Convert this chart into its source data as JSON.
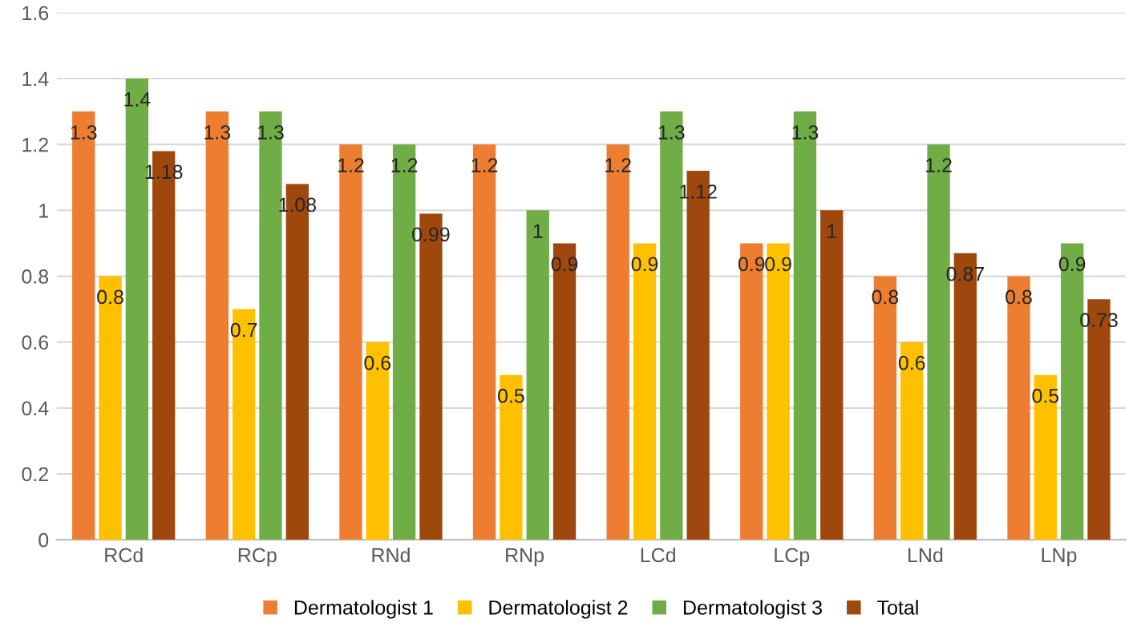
{
  "chart_data": {
    "type": "bar",
    "categories": [
      "RCd",
      "RCp",
      "RNd",
      "RNp",
      "LCd",
      "LCp",
      "LNd",
      "LNp"
    ],
    "series": [
      {
        "name": "Dermatologist 1",
        "color": "#ed7d31",
        "values": [
          1.3,
          1.3,
          1.2,
          1.2,
          1.2,
          0.9,
          0.8,
          0.8
        ]
      },
      {
        "name": "Dermatologist 2",
        "color": "#ffc000",
        "values": [
          0.8,
          0.7,
          0.6,
          0.5,
          0.9,
          0.9,
          0.6,
          0.5
        ]
      },
      {
        "name": "Dermatologist 3",
        "color": "#70ad47",
        "values": [
          1.4,
          1.3,
          1.2,
          1,
          1.3,
          1.3,
          1.2,
          0.9
        ]
      },
      {
        "name": "Total",
        "color": "#9e480e",
        "values": [
          1.18,
          1.08,
          0.99,
          0.9,
          1.12,
          1,
          0.87,
          0.73
        ]
      }
    ],
    "ylim": [
      0,
      1.6
    ],
    "yticks": [
      0,
      0.2,
      0.4,
      0.6,
      0.8,
      1,
      1.2,
      1.4,
      1.6
    ],
    "grid": "y",
    "legend": "bottom",
    "data_labels": true
  }
}
